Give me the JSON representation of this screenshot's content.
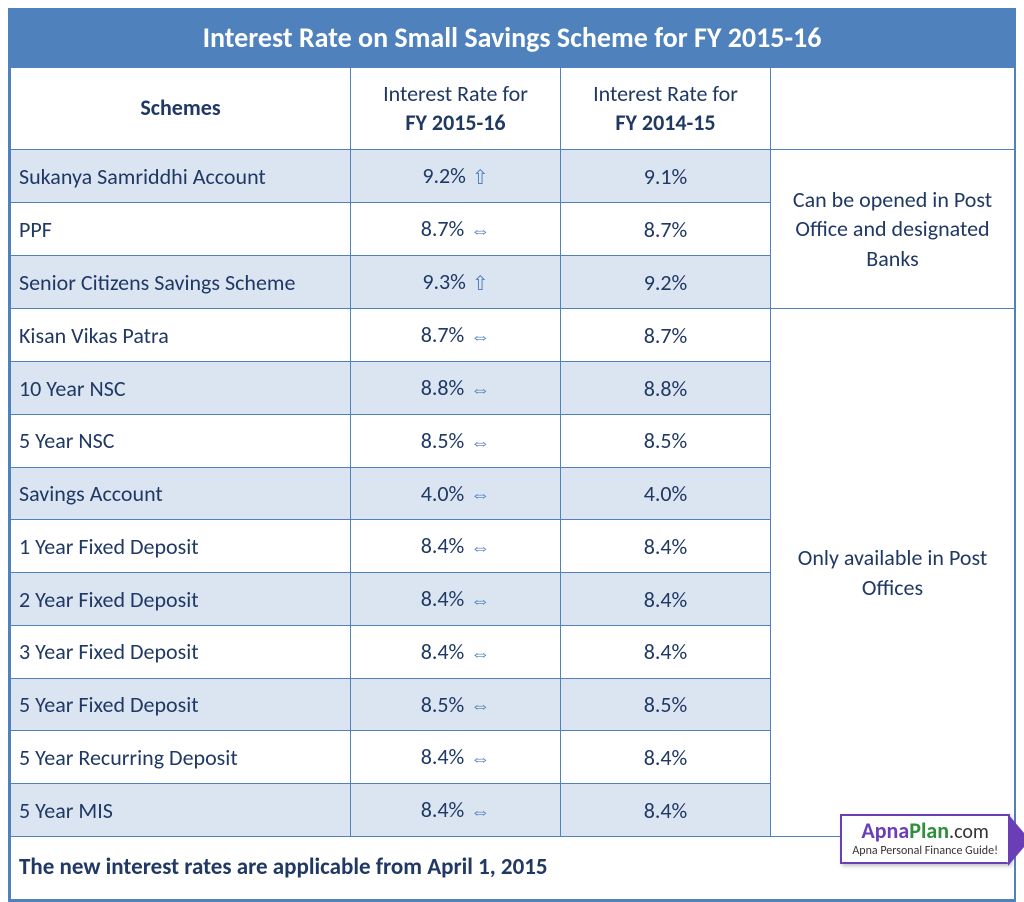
{
  "title": "Interest Rate on Small Savings Scheme for FY 2015-16",
  "columns": {
    "scheme": "Schemes",
    "rate1_line1": "Interest Rate for",
    "rate1_line2": "FY 2015-16",
    "rate2_line1": "Interest Rate for",
    "rate2_line2": "FY 2014-15"
  },
  "arrows": {
    "up": "⇧",
    "same": "⇔"
  },
  "rows": [
    {
      "scheme": "Sukanya Samriddhi Account",
      "r1": "9.2%",
      "trend": "up",
      "r2": "9.1%"
    },
    {
      "scheme": "PPF",
      "r1": "8.7%",
      "trend": "same",
      "r2": "8.7%"
    },
    {
      "scheme": "Senior Citizens Savings Scheme",
      "r1": "9.3%",
      "trend": "up",
      "r2": "9.2%"
    },
    {
      "scheme": "Kisan Vikas Patra",
      "r1": "8.7%",
      "trend": "same",
      "r2": "8.7%"
    },
    {
      "scheme": "10 Year NSC",
      "r1": "8.8%",
      "trend": "same",
      "r2": "8.8%"
    },
    {
      "scheme": "5 Year NSC",
      "r1": "8.5%",
      "trend": "same",
      "r2": "8.5%"
    },
    {
      "scheme": "Savings Account",
      "r1": "4.0%",
      "trend": "same",
      "r2": "4.0%"
    },
    {
      "scheme": "1 Year Fixed Deposit",
      "r1": "8.4%",
      "trend": "same",
      "r2": "8.4%"
    },
    {
      "scheme": "2 Year Fixed Deposit",
      "r1": "8.4%",
      "trend": "same",
      "r2": "8.4%"
    },
    {
      "scheme": "3 Year Fixed Deposit",
      "r1": "8.4%",
      "trend": "same",
      "r2": "8.4%"
    },
    {
      "scheme": "5 Year Fixed Deposit",
      "r1": "8.5%",
      "trend": "same",
      "r2": "8.5%"
    },
    {
      "scheme": "5 Year Recurring Deposit",
      "r1": "8.4%",
      "trend": "same",
      "r2": "8.4%"
    },
    {
      "scheme": "5 Year MIS",
      "r1": "8.4%",
      "trend": "same",
      "r2": "8.4%"
    }
  ],
  "notes": {
    "group1": "Can be opened in Post Office and designated Banks",
    "group2": "Only available in Post Offices"
  },
  "footer": "The new interest rates are applicable from April 1, 2015",
  "logo": {
    "part1": "Apna",
    "part2": "Plan",
    "part3": ".com",
    "tag": "Apna Personal Finance Guide!"
  },
  "style": {
    "accent": "#4f81bd",
    "text": "#1f3864",
    "stripe": "#dbe5f1",
    "title_fontsize": 28,
    "cell_fontsize": 22
  }
}
